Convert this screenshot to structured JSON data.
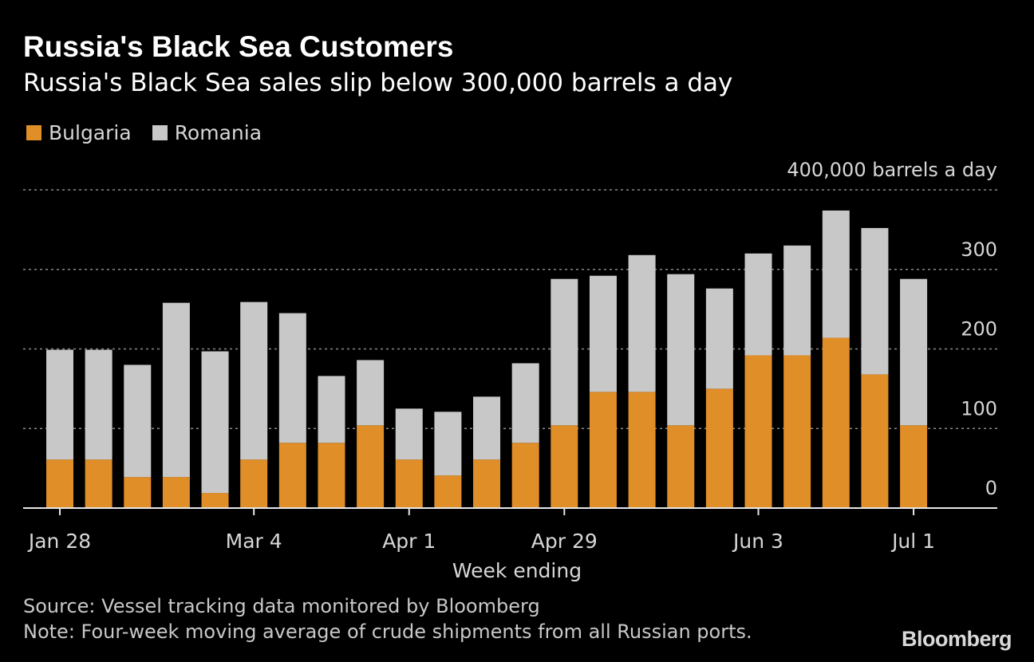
{
  "header": {
    "title": "Russia's Black Sea Customers",
    "subtitle": "Russia's Black Sea sales slip below 300,000 barrels a day"
  },
  "legend": [
    {
      "label": "Bulgaria",
      "color": "#e08e28"
    },
    {
      "label": "Romania",
      "color": "#c8c8c8"
    }
  ],
  "footer": {
    "source": "Source: Vessel tracking data monitored by Bloomberg",
    "note": "Note: Four-week moving average of crude shipments from all Russian ports.",
    "brand": "Bloomberg"
  },
  "colors": {
    "background": "#000000",
    "bulgaria": "#e08e28",
    "romania": "#c8c8c8",
    "grid": "#8a8a8a",
    "axis_text": "#d7d7d7"
  },
  "chart_data": {
    "type": "bar",
    "stacked": true,
    "x_label": "Week ending",
    "y_unit_label": "400,000 barrels a day",
    "y_ticks": [
      0,
      100,
      200,
      300
    ],
    "ylim": [
      0,
      400
    ],
    "grid": true,
    "y_axis_side": "right",
    "x_ticks": [
      {
        "label": "Jan 28",
        "index": 0
      },
      {
        "label": "Mar 4",
        "index": 5
      },
      {
        "label": "Apr 1",
        "index": 9
      },
      {
        "label": "Apr 29",
        "index": 13
      },
      {
        "label": "Jun 3",
        "index": 18
      },
      {
        "label": "Jul 1",
        "index": 22
      }
    ],
    "series": [
      {
        "name": "Bulgaria",
        "color": "#e08e28",
        "values": [
          61,
          61,
          39,
          39,
          19,
          61,
          82,
          82,
          104,
          61,
          41,
          61,
          82,
          104,
          146,
          146,
          104,
          150,
          192,
          192,
          214,
          168,
          104
        ]
      },
      {
        "name": "Romania",
        "color": "#c8c8c8",
        "values": [
          138,
          138,
          141,
          219,
          178,
          198,
          163,
          84,
          82,
          64,
          80,
          79,
          100,
          184,
          146,
          172,
          190,
          126,
          128,
          138,
          160,
          184,
          184
        ]
      }
    ]
  }
}
